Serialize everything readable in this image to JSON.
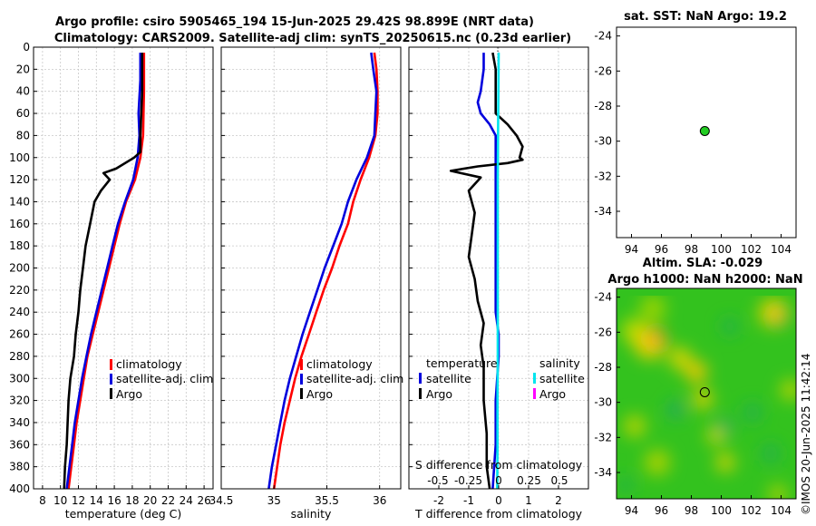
{
  "title": {
    "line1": "Argo profile: csiro 5905465_194 15-Jun-2025 29.42S 98.899E (NRT data)",
    "line2": "Climatology: CARS2009. Satellite-adj clim: synTS_20250615.nc (0.23d earlier)"
  },
  "timestamp": "©IMOS 20-Jun-2025 11:42:14",
  "colors": {
    "climatology": "#ff0000",
    "satellite": "#0000dd",
    "argo": "#000000",
    "sal_sat": "#00e5ee",
    "sal_argo": "#ff00ff",
    "sst_dot": "#22cc22"
  },
  "chart_data": [
    {
      "name": "temperature-profile",
      "type": "line",
      "xlabel": "temperature (deg C)",
      "xlim": [
        7,
        27
      ],
      "ylim": [
        0,
        400
      ],
      "xticks": [
        8,
        10,
        12,
        14,
        16,
        18,
        20,
        22,
        24,
        26
      ],
      "yticks": [
        0,
        20,
        40,
        60,
        80,
        100,
        120,
        140,
        160,
        180,
        200,
        220,
        240,
        260,
        280,
        300,
        320,
        340,
        360,
        380,
        400
      ],
      "legend": [
        "climatology",
        "satellite-adj. clim",
        "Argo"
      ],
      "series": [
        {
          "name": "climatology",
          "color": "#ff0000",
          "points": [
            [
              19.3,
              5
            ],
            [
              19.3,
              40
            ],
            [
              19.2,
              80
            ],
            [
              18.9,
              100
            ],
            [
              18.3,
              120
            ],
            [
              17.3,
              140
            ],
            [
              16.6,
              160
            ],
            [
              16.0,
              180
            ],
            [
              15.4,
              200
            ],
            [
              14.8,
              220
            ],
            [
              14.2,
              240
            ],
            [
              13.6,
              260
            ],
            [
              13.0,
              280
            ],
            [
              12.6,
              300
            ],
            [
              12.2,
              320
            ],
            [
              11.8,
              340
            ],
            [
              11.5,
              360
            ],
            [
              11.2,
              380
            ],
            [
              10.9,
              400
            ]
          ]
        },
        {
          "name": "satellite-adj. clim",
          "color": "#0000dd",
          "points": [
            [
              18.9,
              5
            ],
            [
              18.9,
              30
            ],
            [
              18.7,
              60
            ],
            [
              18.8,
              80
            ],
            [
              18.6,
              100
            ],
            [
              18.1,
              120
            ],
            [
              17.2,
              140
            ],
            [
              16.4,
              160
            ],
            [
              15.8,
              180
            ],
            [
              15.2,
              200
            ],
            [
              14.6,
              220
            ],
            [
              14.0,
              240
            ],
            [
              13.4,
              260
            ],
            [
              12.9,
              280
            ],
            [
              12.4,
              300
            ],
            [
              12.0,
              320
            ],
            [
              11.6,
              340
            ],
            [
              11.3,
              360
            ],
            [
              11.0,
              380
            ],
            [
              10.7,
              400
            ]
          ]
        },
        {
          "name": "Argo",
          "color": "#000000",
          "points": [
            [
              19.1,
              5
            ],
            [
              19.1,
              40
            ],
            [
              18.9,
              80
            ],
            [
              18.9,
              95
            ],
            [
              18.2,
              100
            ],
            [
              16.2,
              110
            ],
            [
              14.8,
              114
            ],
            [
              15.5,
              120
            ],
            [
              14.5,
              130
            ],
            [
              13.8,
              140
            ],
            [
              13.3,
              160
            ],
            [
              12.8,
              180
            ],
            [
              12.5,
              200
            ],
            [
              12.2,
              220
            ],
            [
              12.0,
              240
            ],
            [
              11.7,
              260
            ],
            [
              11.5,
              280
            ],
            [
              11.1,
              300
            ],
            [
              10.9,
              320
            ],
            [
              10.8,
              340
            ],
            [
              10.7,
              360
            ],
            [
              10.5,
              380
            ],
            [
              10.4,
              400
            ]
          ]
        }
      ]
    },
    {
      "name": "salinity-profile",
      "type": "line",
      "xlabel": "salinity",
      "xlim": [
        34.5,
        36.2
      ],
      "ylim": [
        0,
        400
      ],
      "xticks": [
        34.5,
        35,
        35.5,
        36
      ],
      "legend": [
        "climatology",
        "satellite-adj. clim",
        "Argo"
      ],
      "series": [
        {
          "name": "climatology",
          "color": "#ff0000",
          "points": [
            [
              35.95,
              5
            ],
            [
              35.97,
              20
            ],
            [
              35.98,
              40
            ],
            [
              35.98,
              60
            ],
            [
              35.96,
              80
            ],
            [
              35.9,
              100
            ],
            [
              35.82,
              120
            ],
            [
              35.75,
              140
            ],
            [
              35.7,
              160
            ],
            [
              35.62,
              180
            ],
            [
              35.55,
              200
            ],
            [
              35.47,
              220
            ],
            [
              35.4,
              240
            ],
            [
              35.33,
              260
            ],
            [
              35.26,
              280
            ],
            [
              35.2,
              300
            ],
            [
              35.15,
              320
            ],
            [
              35.1,
              340
            ],
            [
              35.06,
              360
            ],
            [
              35.03,
              380
            ],
            [
              35.0,
              400
            ]
          ]
        },
        {
          "name": "satellite-adj. clim",
          "color": "#0000dd",
          "points": [
            [
              35.92,
              5
            ],
            [
              35.94,
              20
            ],
            [
              35.97,
              40
            ],
            [
              35.96,
              60
            ],
            [
              35.95,
              80
            ],
            [
              35.88,
              100
            ],
            [
              35.78,
              120
            ],
            [
              35.7,
              140
            ],
            [
              35.64,
              160
            ],
            [
              35.56,
              180
            ],
            [
              35.48,
              200
            ],
            [
              35.41,
              220
            ],
            [
              35.34,
              240
            ],
            [
              35.27,
              260
            ],
            [
              35.21,
              280
            ],
            [
              35.15,
              300
            ],
            [
              35.1,
              320
            ],
            [
              35.06,
              340
            ],
            [
              35.02,
              360
            ],
            [
              34.98,
              380
            ],
            [
              34.95,
              400
            ]
          ]
        },
        {
          "name": "Argo",
          "color": "#000000",
          "points": []
        }
      ]
    },
    {
      "name": "difference-profile",
      "type": "line",
      "xlabel": "T difference from climatology",
      "top_label": "S difference from climatology",
      "xlim": [
        -3,
        3
      ],
      "ylim": [
        0,
        400
      ],
      "xticks": [
        -2,
        -1,
        0,
        1,
        2
      ],
      "xtick_labels": [
        "-2",
        "-1",
        "0",
        "1",
        "2"
      ],
      "top_ticks": [
        -0.5,
        -0.25,
        0,
        0.25,
        0.5
      ],
      "top_tick_labels": [
        "-0.5",
        "-0.25",
        "0",
        "0.25",
        "0.5"
      ],
      "legend_temperature_title": "temperature",
      "legend_salinity_title": "salinity",
      "legend_temperature": [
        "satellite",
        "Argo"
      ],
      "legend_salinity": [
        "satellite",
        "Argo"
      ],
      "series": [
        {
          "name": "T satellite",
          "color": "#0000dd",
          "points": [
            [
              -0.5,
              5
            ],
            [
              -0.5,
              20
            ],
            [
              -0.6,
              40
            ],
            [
              -0.7,
              50
            ],
            [
              -0.6,
              60
            ],
            [
              -0.3,
              70
            ],
            [
              -0.1,
              80
            ],
            [
              -0.1,
              100
            ],
            [
              -0.1,
              120
            ],
            [
              -0.1,
              160
            ],
            [
              -0.1,
              200
            ],
            [
              -0.1,
              240
            ],
            [
              0.0,
              260
            ],
            [
              0.0,
              280
            ],
            [
              -0.1,
              320
            ],
            [
              -0.1,
              360
            ],
            [
              -0.2,
              400
            ]
          ]
        },
        {
          "name": "T Argo",
          "color": "#000000",
          "points": [
            [
              -0.2,
              5
            ],
            [
              -0.1,
              20
            ],
            [
              -0.1,
              40
            ],
            [
              -0.1,
              60
            ],
            [
              0.3,
              70
            ],
            [
              0.6,
              80
            ],
            [
              0.8,
              90
            ],
            [
              0.7,
              100
            ],
            [
              0.8,
              102
            ],
            [
              0.3,
              105
            ],
            [
              -0.7,
              108
            ],
            [
              -1.6,
              112
            ],
            [
              -0.6,
              118
            ],
            [
              -1.0,
              130
            ],
            [
              -0.8,
              150
            ],
            [
              -0.9,
              170
            ],
            [
              -1.0,
              190
            ],
            [
              -0.8,
              210
            ],
            [
              -0.7,
              230
            ],
            [
              -0.5,
              250
            ],
            [
              -0.6,
              270
            ],
            [
              -0.5,
              290
            ],
            [
              -0.5,
              320
            ],
            [
              -0.4,
              350
            ],
            [
              -0.4,
              380
            ],
            [
              -0.3,
              400
            ]
          ]
        },
        {
          "name": "S satellite",
          "color": "#00e5ee",
          "points": [
            [
              0.0,
              5
            ],
            [
              -0.01,
              40
            ],
            [
              -0.02,
              80
            ],
            [
              -0.03,
              120
            ],
            [
              -0.03,
              160
            ],
            [
              -0.03,
              200
            ],
            [
              -0.03,
              240
            ],
            [
              -0.03,
              280
            ],
            [
              -0.04,
              320
            ],
            [
              -0.04,
              360
            ],
            [
              -0.05,
              400
            ]
          ]
        }
      ]
    },
    {
      "name": "sst-map",
      "type": "scatter",
      "title": "sat. SST: NaN Argo: 19.2",
      "xlim": [
        93,
        105
      ],
      "ylim": [
        -35.5,
        -23.5
      ],
      "xticks": [
        94,
        96,
        98,
        100,
        102,
        104
      ],
      "yticks": [
        -24,
        -26,
        -28,
        -30,
        -32,
        -34
      ],
      "points": [
        {
          "lon": 98.899,
          "lat": -29.42,
          "color": "#22cc22"
        }
      ]
    },
    {
      "name": "sla-map",
      "type": "heatmap",
      "title": "Altim. SLA: -0.029",
      "subtitle": "Argo h1000: NaN h2000: NaN",
      "xlim": [
        93,
        105
      ],
      "ylim": [
        -35.5,
        -23.5
      ],
      "xticks": [
        94,
        96,
        98,
        100,
        102,
        104
      ],
      "yticks": [
        -24,
        -26,
        -28,
        -30,
        -32,
        -34
      ],
      "points": [
        {
          "lon": 98.899,
          "lat": -29.42
        }
      ]
    }
  ]
}
